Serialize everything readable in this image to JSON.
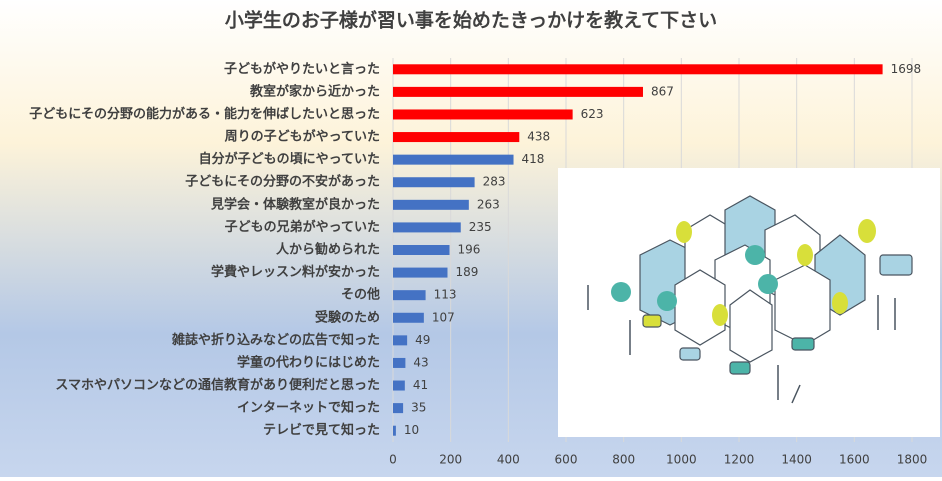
{
  "chart_data": {
    "type": "hbar",
    "title": "小学生のお子様が習い事を始めたきっかけを教えて下さい",
    "categories": [
      "子どもがやりたいと言った",
      "教室が家から近かった",
      "子どもにその分野の能力がある・能力を伸ばしたいと思った",
      "周りの子どもがやっていた",
      "自分が子どもの頃にやっていた",
      "子どもにその分野の不安があった",
      "見学会・体験教室が良かった",
      "子どもの兄弟がやっていた",
      "人から勧められた",
      "学費やレッスン料が安かった",
      "その他",
      "受験のため",
      "雑誌や折り込みなどの広告で知った",
      "学童の代わりにはじめた",
      "スマホやパソコンなどの通信教育があり便利だと思った",
      "インターネットで知った",
      "テレビで見て知った"
    ],
    "values": [
      1698,
      867,
      623,
      438,
      418,
      283,
      263,
      235,
      196,
      189,
      113,
      107,
      49,
      43,
      41,
      35,
      10
    ],
    "colors": [
      "#ff0000",
      "#ff0000",
      "#ff0000",
      "#ff0000",
      "#4472c4",
      "#4472c4",
      "#4472c4",
      "#4472c4",
      "#4472c4",
      "#4472c4",
      "#4472c4",
      "#4472c4",
      "#4472c4",
      "#4472c4",
      "#4472c4",
      "#4472c4",
      "#4472c4"
    ],
    "xlim": [
      0,
      1800
    ],
    "xticks": [
      0,
      200,
      400,
      600,
      800,
      1000,
      1200,
      1400,
      1600,
      1800
    ],
    "grid": true
  }
}
